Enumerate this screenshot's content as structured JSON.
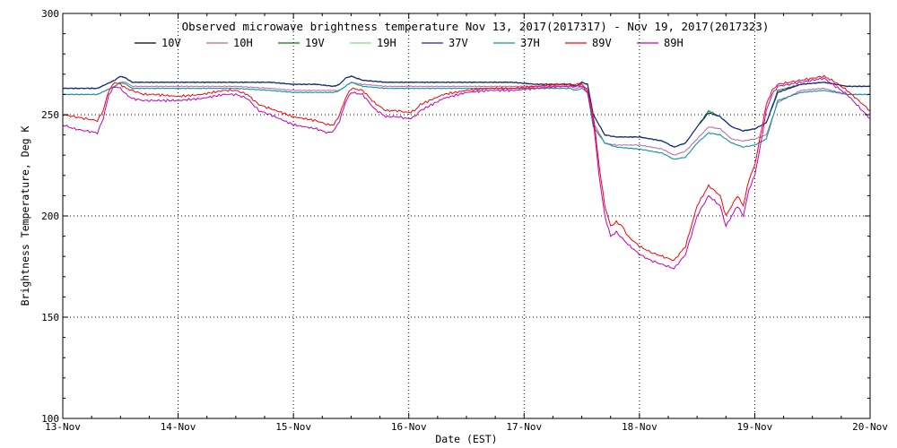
{
  "chart_data": {
    "type": "line",
    "title": "Observed microwave brightness temperature Nov 13, 2017(2017317) - Nov 19, 2017(2017323)",
    "xlabel": "Date (EST)",
    "ylabel": "Brightness Temperature, Deg K",
    "xlim": [
      0,
      7
    ],
    "ylim": [
      100,
      300
    ],
    "x_ticks": [
      0,
      1,
      2,
      3,
      4,
      5,
      6,
      7
    ],
    "x_tick_labels": [
      "13-Nov",
      "14-Nov",
      "15-Nov",
      "16-Nov",
      "17-Nov",
      "18-Nov",
      "19-Nov",
      "20-Nov"
    ],
    "y_ticks": [
      100,
      150,
      200,
      250,
      300
    ],
    "y_tick_labels": [
      "100",
      "150",
      "200",
      "250",
      "300"
    ],
    "grid": "dotted",
    "legend_position": "top",
    "x_unit": "days since 13-Nov 00:00 EST",
    "series": [
      {
        "name": "10V",
        "color": "#000000",
        "x": [
          0,
          0.3,
          0.45,
          0.5,
          0.55,
          0.6,
          0.8,
          1.0,
          1.2,
          1.5,
          1.8,
          2.0,
          2.2,
          2.35,
          2.4,
          2.45,
          2.5,
          2.6,
          2.8,
          3.0,
          3.2,
          3.5,
          3.7,
          3.9,
          4.1,
          4.3,
          4.4,
          4.45,
          4.5,
          4.55,
          4.6,
          4.7,
          4.8,
          5.0,
          5.2,
          5.3,
          5.4,
          5.5,
          5.6,
          5.7,
          5.8,
          5.9,
          6.0,
          6.1,
          6.2,
          6.4,
          6.6,
          6.8,
          7.0
        ],
        "values": [
          263,
          263,
          267,
          269,
          268,
          266,
          266,
          266,
          266,
          266,
          266,
          265,
          265,
          264,
          265,
          268,
          269,
          267,
          266,
          266,
          266,
          266,
          266,
          266,
          265,
          265,
          265,
          264,
          266,
          265,
          250,
          240,
          239,
          239,
          237,
          234,
          236,
          244,
          251,
          249,
          244,
          242,
          243,
          246,
          261,
          265,
          266,
          264,
          264
        ]
      },
      {
        "name": "10H",
        "color": "#c060a0",
        "x": [
          0,
          0.3,
          0.45,
          0.5,
          0.55,
          0.6,
          0.8,
          1.0,
          1.2,
          1.5,
          1.8,
          2.0,
          2.2,
          2.35,
          2.4,
          2.45,
          2.5,
          2.6,
          2.8,
          3.0,
          3.2,
          3.5,
          3.7,
          3.9,
          4.1,
          4.3,
          4.4,
          4.45,
          4.5,
          4.55,
          4.6,
          4.7,
          4.8,
          5.0,
          5.2,
          5.3,
          5.4,
          5.5,
          5.6,
          5.7,
          5.8,
          5.9,
          6.0,
          6.1,
          6.2,
          6.4,
          6.6,
          6.8,
          7.0
        ],
        "values": [
          260,
          260,
          264,
          266,
          266,
          264,
          264,
          264,
          264,
          264,
          263,
          262,
          262,
          262,
          262,
          264,
          266,
          265,
          264,
          264,
          264,
          264,
          264,
          264,
          264,
          264,
          264,
          263,
          264,
          263,
          246,
          236,
          235,
          235,
          233,
          230,
          232,
          238,
          244,
          243,
          238,
          237,
          238,
          240,
          256,
          262,
          263,
          260,
          260
        ]
      },
      {
        "name": "19V",
        "color": "#008000",
        "x": [
          0,
          0.3,
          0.45,
          0.5,
          0.55,
          0.6,
          0.8,
          1.0,
          1.2,
          1.5,
          1.8,
          2.0,
          2.2,
          2.35,
          2.4,
          2.45,
          2.5,
          2.6,
          2.8,
          3.0,
          3.2,
          3.5,
          3.7,
          3.9,
          4.1,
          4.3,
          4.4,
          4.45,
          4.5,
          4.55,
          4.6,
          4.7,
          4.8,
          5.0,
          5.2,
          5.3,
          5.4,
          5.5,
          5.6,
          5.7,
          5.8,
          5.9,
          6.0,
          6.1,
          6.2,
          6.4,
          6.6,
          6.8,
          7.0
        ],
        "values": [
          263,
          263,
          267,
          269,
          268,
          266,
          266,
          266,
          266,
          266,
          266,
          265,
          265,
          264,
          265,
          268,
          269,
          267,
          266,
          266,
          266,
          266,
          266,
          266,
          265,
          265,
          265,
          264,
          266,
          265,
          250,
          240,
          239,
          239,
          237,
          234,
          236,
          244,
          252,
          249,
          244,
          242,
          243,
          246,
          262,
          265,
          266,
          264,
          264
        ]
      },
      {
        "name": "19H",
        "color": "#80e080",
        "x": [
          0,
          0.3,
          0.45,
          0.5,
          0.55,
          0.6,
          0.8,
          1.0,
          1.2,
          1.5,
          1.8,
          2.0,
          2.2,
          2.35,
          2.4,
          2.45,
          2.5,
          2.6,
          2.8,
          3.0,
          3.2,
          3.5,
          3.7,
          3.9,
          4.1,
          4.3,
          4.4,
          4.45,
          4.5,
          4.55,
          4.6,
          4.7,
          4.8,
          5.0,
          5.2,
          5.3,
          5.4,
          5.5,
          5.6,
          5.7,
          5.8,
          5.9,
          6.0,
          6.1,
          6.2,
          6.4,
          6.6,
          6.8,
          7.0
        ],
        "values": [
          260,
          260,
          264,
          266,
          265,
          263,
          263,
          263,
          263,
          263,
          262,
          261,
          261,
          261,
          262,
          264,
          266,
          264,
          263,
          263,
          263,
          263,
          263,
          263,
          263,
          263,
          263,
          262,
          263,
          261,
          244,
          236,
          234,
          233,
          231,
          228,
          229,
          236,
          241,
          240,
          236,
          234,
          235,
          238,
          257,
          261,
          262,
          260,
          260
        ]
      },
      {
        "name": "37V",
        "color": "#2020a0",
        "x": [
          0,
          0.3,
          0.45,
          0.5,
          0.55,
          0.6,
          0.8,
          1.0,
          1.2,
          1.5,
          1.8,
          2.0,
          2.2,
          2.35,
          2.4,
          2.45,
          2.5,
          2.6,
          2.8,
          3.0,
          3.2,
          3.5,
          3.7,
          3.9,
          4.1,
          4.3,
          4.4,
          4.45,
          4.5,
          4.55,
          4.6,
          4.7,
          4.8,
          5.0,
          5.2,
          5.3,
          5.4,
          5.5,
          5.6,
          5.7,
          5.8,
          5.9,
          6.0,
          6.1,
          6.2,
          6.4,
          6.6,
          6.8,
          7.0
        ],
        "values": [
          263,
          263,
          267,
          269,
          268,
          266,
          266,
          266,
          266,
          266,
          266,
          265,
          265,
          264,
          265,
          268,
          269,
          267,
          266,
          266,
          266,
          266,
          266,
          266,
          265,
          265,
          265,
          264,
          266,
          265,
          250,
          240,
          239,
          239,
          237,
          234,
          236,
          244,
          251,
          249,
          244,
          242,
          243,
          246,
          261,
          265,
          266,
          264,
          264
        ]
      },
      {
        "name": "37H",
        "color": "#1090b0",
        "x": [
          0,
          0.3,
          0.45,
          0.5,
          0.55,
          0.6,
          0.8,
          1.0,
          1.2,
          1.5,
          1.8,
          2.0,
          2.2,
          2.35,
          2.4,
          2.45,
          2.5,
          2.6,
          2.8,
          3.0,
          3.2,
          3.5,
          3.7,
          3.9,
          4.1,
          4.3,
          4.4,
          4.45,
          4.5,
          4.55,
          4.6,
          4.7,
          4.8,
          5.0,
          5.2,
          5.3,
          5.4,
          5.5,
          5.6,
          5.7,
          5.8,
          5.9,
          6.0,
          6.1,
          6.2,
          6.4,
          6.6,
          6.8,
          7.0
        ],
        "values": [
          260,
          260,
          264,
          266,
          265,
          263,
          263,
          263,
          263,
          263,
          262,
          261,
          261,
          261,
          262,
          264,
          266,
          264,
          263,
          263,
          263,
          263,
          263,
          263,
          263,
          263,
          263,
          262,
          263,
          261,
          244,
          236,
          234,
          233,
          231,
          228,
          229,
          236,
          241,
          240,
          236,
          234,
          235,
          238,
          257,
          261,
          262,
          260,
          260
        ]
      },
      {
        "name": "89V",
        "color": "#ff0000",
        "x": [
          0,
          0.1,
          0.2,
          0.3,
          0.35,
          0.4,
          0.45,
          0.5,
          0.55,
          0.6,
          0.7,
          0.8,
          1.0,
          1.2,
          1.4,
          1.5,
          1.6,
          1.7,
          1.8,
          2.0,
          2.2,
          2.3,
          2.35,
          2.4,
          2.45,
          2.5,
          2.6,
          2.7,
          2.8,
          2.9,
          3.0,
          3.05,
          3.1,
          3.3,
          3.5,
          3.7,
          3.9,
          4.1,
          4.3,
          4.4,
          4.5,
          4.55,
          4.6,
          4.65,
          4.7,
          4.75,
          4.8,
          4.85,
          4.9,
          5.0,
          5.1,
          5.2,
          5.3,
          5.4,
          5.5,
          5.6,
          5.7,
          5.75,
          5.8,
          5.85,
          5.9,
          5.95,
          6.0,
          6.05,
          6.1,
          6.15,
          6.2,
          6.3,
          6.4,
          6.5,
          6.6,
          6.7,
          6.8,
          6.9,
          7.0
        ],
        "values": [
          250,
          249,
          248,
          247,
          252,
          262,
          266,
          265,
          263,
          262,
          260,
          260,
          259,
          260,
          262,
          262,
          260,
          255,
          253,
          249,
          247,
          245,
          245,
          250,
          258,
          263,
          262,
          256,
          252,
          252,
          251,
          252,
          255,
          260,
          262,
          263,
          263,
          264,
          265,
          265,
          265,
          262,
          250,
          225,
          205,
          195,
          197,
          195,
          190,
          185,
          182,
          180,
          178,
          185,
          205,
          215,
          210,
          200,
          205,
          210,
          205,
          218,
          225,
          240,
          255,
          262,
          265,
          266,
          267,
          268,
          269,
          266,
          262,
          257,
          252
        ]
      },
      {
        "name": "89H",
        "color": "#c000c0",
        "x": [
          0,
          0.1,
          0.2,
          0.3,
          0.35,
          0.4,
          0.45,
          0.5,
          0.55,
          0.6,
          0.7,
          0.8,
          1.0,
          1.2,
          1.4,
          1.5,
          1.6,
          1.7,
          1.8,
          2.0,
          2.2,
          2.3,
          2.35,
          2.4,
          2.45,
          2.5,
          2.6,
          2.7,
          2.8,
          2.9,
          3.0,
          3.05,
          3.1,
          3.3,
          3.5,
          3.7,
          3.9,
          4.1,
          4.3,
          4.4,
          4.5,
          4.55,
          4.6,
          4.65,
          4.7,
          4.75,
          4.8,
          4.85,
          4.9,
          5.0,
          5.1,
          5.2,
          5.3,
          5.4,
          5.5,
          5.6,
          5.7,
          5.75,
          5.8,
          5.85,
          5.9,
          5.95,
          6.0,
          6.05,
          6.1,
          6.15,
          6.2,
          6.3,
          6.4,
          6.5,
          6.6,
          6.7,
          6.8,
          6.9,
          7.0
        ],
        "values": [
          245,
          243,
          242,
          241,
          248,
          260,
          264,
          263,
          260,
          258,
          257,
          257,
          257,
          258,
          260,
          260,
          258,
          252,
          250,
          245,
          243,
          241,
          242,
          247,
          256,
          261,
          260,
          253,
          249,
          249,
          248,
          249,
          252,
          258,
          261,
          262,
          262,
          263,
          264,
          264,
          264,
          261,
          247,
          220,
          200,
          190,
          192,
          189,
          186,
          181,
          178,
          176,
          174,
          181,
          200,
          210,
          205,
          195,
          200,
          205,
          200,
          213,
          220,
          235,
          252,
          260,
          264,
          265,
          266,
          267,
          268,
          264,
          260,
          254,
          248
        ]
      }
    ]
  }
}
